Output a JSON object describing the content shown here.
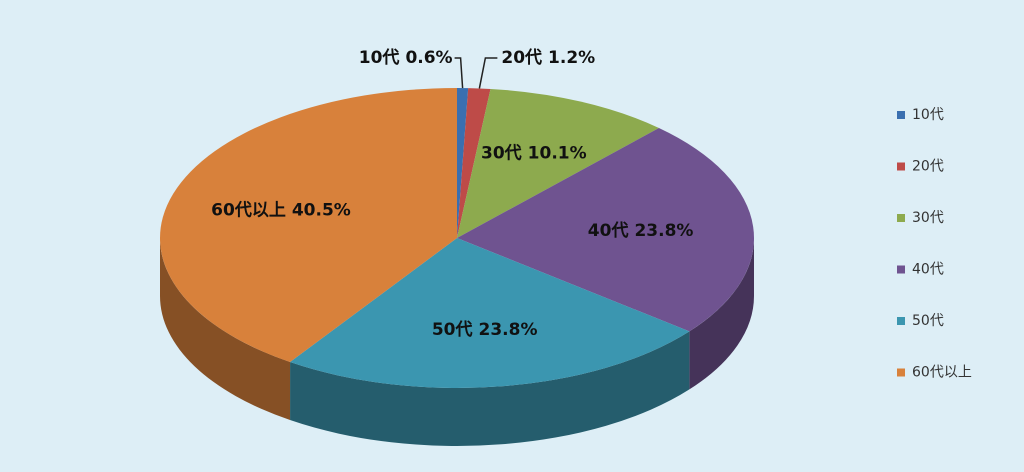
{
  "chart_data": {
    "type": "pie",
    "categories": [
      "10代",
      "20代",
      "30代",
      "40代",
      "50代",
      "60代以上"
    ],
    "values": [
      0.6,
      1.2,
      10.1,
      23.8,
      23.8,
      40.5
    ],
    "value_labels": [
      "0.6%",
      "1.2%",
      "10.1%",
      "23.8%",
      "23.8%",
      "40.5%"
    ],
    "colors": [
      "#3a6fb0",
      "#be4b48",
      "#8daa4e",
      "#6f5390",
      "#3b96b0",
      "#d8813b"
    ],
    "legend": "right"
  }
}
